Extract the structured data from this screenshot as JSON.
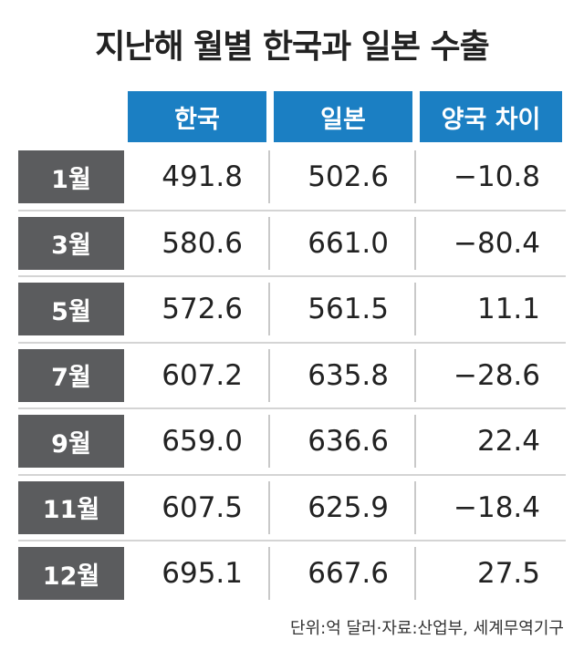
{
  "title": "지난해 월별 한국과 일본 수출",
  "table": {
    "columns": [
      "한국",
      "일본",
      "양국 차이"
    ],
    "rows": [
      [
        "1월",
        "491.8",
        "502.6",
        "−10.8"
      ],
      [
        "3월",
        "580.6",
        "661.0",
        "−80.4"
      ],
      [
        "5월",
        "572.6",
        "561.5",
        "11.1"
      ],
      [
        "7월",
        "607.2",
        "635.8",
        "−28.6"
      ],
      [
        "9월",
        "659.0",
        "636.6",
        "22.4"
      ],
      [
        "11월",
        "607.5",
        "625.9",
        "−18.4"
      ],
      [
        "12월",
        "695.1",
        "667.6",
        "27.5"
      ]
    ]
  },
  "source": "단위:억 달러·자료:산업부, 세계무역기구"
}
